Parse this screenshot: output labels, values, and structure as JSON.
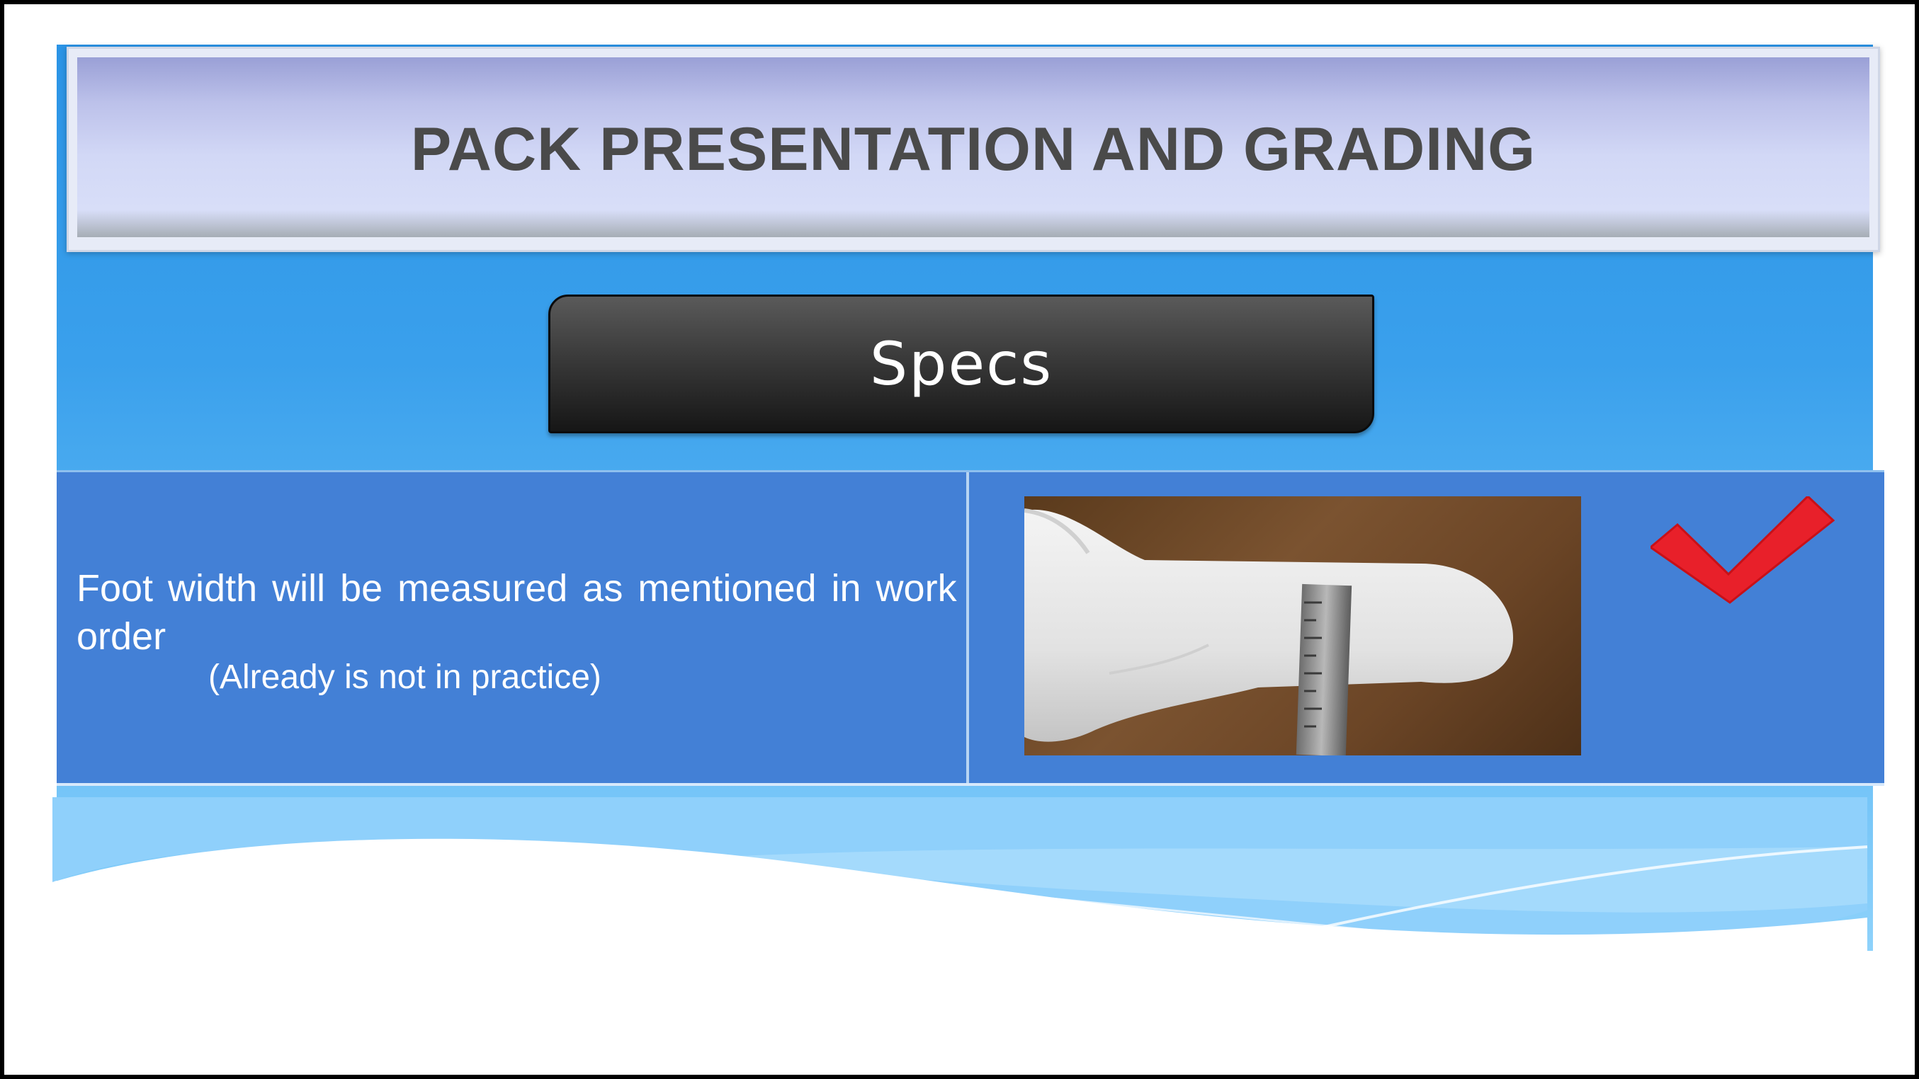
{
  "slide": {
    "title": "PACK PRESENTATION AND GRADING",
    "section_button": "Specs",
    "description": "Foot width will be measured as  mentioned in work order",
    "note": "(Already is not in practice)",
    "image_icon": "sock-measurement-photo",
    "status_icon": "checkmark-icon"
  },
  "colors": {
    "slide_blue": "#2b94e6",
    "table_cell": "#4380d6",
    "check_red": "#e8202a",
    "title_text": "#4a4a4a"
  }
}
